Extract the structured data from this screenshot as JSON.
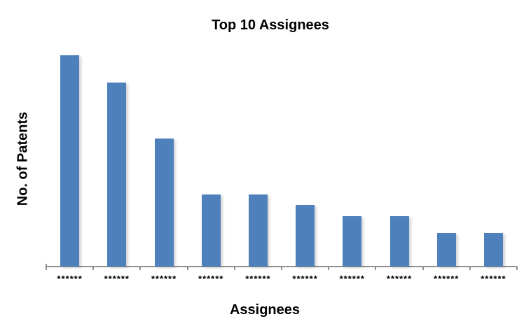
{
  "colors": {
    "bar": "#4E80BC",
    "axis": "#8E8E8E",
    "text": "#000000"
  },
  "chart_data": {
    "type": "bar",
    "title": "Top 10 Assignees",
    "xlabel": "Assignees",
    "ylabel": "No. of Patents",
    "categories": [
      "******",
      "******",
      "******",
      "******",
      "******",
      "******",
      "******",
      "******",
      "******",
      "******"
    ],
    "values": [
      302,
      263,
      183,
      103,
      103,
      88,
      72,
      72,
      48,
      48
    ],
    "value_scale": "relative bar heights in pixels; y-axis shows no numeric tick labels",
    "y_tick_labels_visible": false,
    "grid": false,
    "legend": false
  }
}
